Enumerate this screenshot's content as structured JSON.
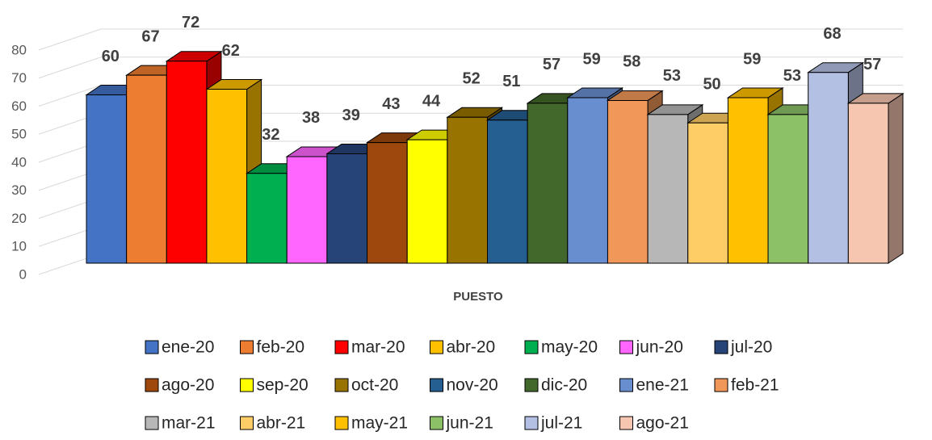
{
  "chart_data": {
    "type": "bar3d",
    "categories": [
      "PUESTO"
    ],
    "ylim": [
      0,
      80
    ],
    "yticks": [
      0,
      10,
      20,
      30,
      40,
      50,
      60,
      70,
      80
    ],
    "grid": true,
    "series": [
      {
        "name": "ene-20",
        "color": "#4472c4",
        "values": [
          60
        ]
      },
      {
        "name": "feb-20",
        "color": "#ed7d31",
        "values": [
          67
        ]
      },
      {
        "name": "mar-20",
        "color": "#ff0000",
        "values": [
          72
        ]
      },
      {
        "name": "abr-20",
        "color": "#ffc000",
        "values": [
          62
        ]
      },
      {
        "name": "may-20",
        "color": "#00b050",
        "values": [
          32
        ]
      },
      {
        "name": "jun-20",
        "color": "#ff66ff",
        "values": [
          38
        ]
      },
      {
        "name": "jul-20",
        "color": "#264478",
        "values": [
          39
        ]
      },
      {
        "name": "ago-20",
        "color": "#9e480e",
        "values": [
          43
        ]
      },
      {
        "name": "sep-20",
        "color": "#ffff00",
        "values": [
          44
        ]
      },
      {
        "name": "oct-20",
        "color": "#997300",
        "values": [
          52
        ]
      },
      {
        "name": "nov-20",
        "color": "#255e91",
        "values": [
          51
        ]
      },
      {
        "name": "dic-20",
        "color": "#43682b",
        "values": [
          57
        ]
      },
      {
        "name": "ene-21",
        "color": "#698ed0",
        "values": [
          59
        ]
      },
      {
        "name": "feb-21",
        "color": "#f1975a",
        "values": [
          58
        ]
      },
      {
        "name": "mar-21",
        "color": "#b7b7b7",
        "values": [
          53
        ]
      },
      {
        "name": "abr-21",
        "color": "#ffcd66",
        "values": [
          50
        ]
      },
      {
        "name": "may-21",
        "color": "#ffc000",
        "values": [
          59
        ]
      },
      {
        "name": "jun-21",
        "color": "#8cc168",
        "values": [
          53
        ]
      },
      {
        "name": "jul-21",
        "color": "#b4c0e3",
        "values": [
          68
        ]
      },
      {
        "name": "ago-21",
        "color": "#f6c6b0",
        "values": [
          57
        ]
      }
    ]
  }
}
